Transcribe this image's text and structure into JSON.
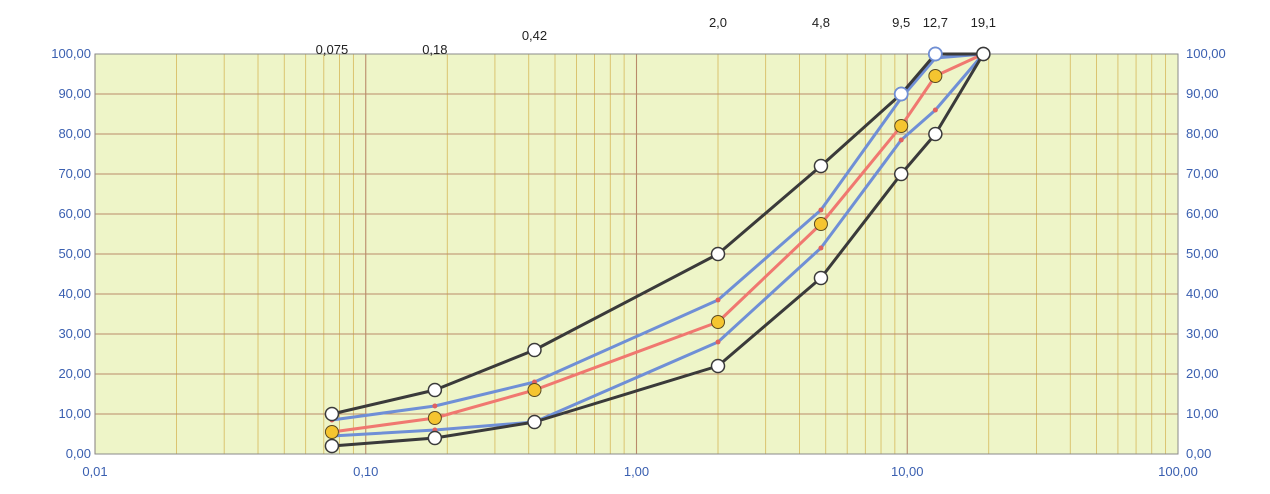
{
  "colors": {
    "plot_bg": "#eef5c8",
    "grid_major": "#b98a6a",
    "grid_minor": "#d6b85a",
    "tick_text": "#3a5fb0",
    "envelope_line": "#3a3a3a",
    "inner_line": "#6f8fd6",
    "median_line": "#f07870",
    "marker_yellow": "#f5c530"
  },
  "chart_data": {
    "type": "line",
    "x_scale": "log",
    "xlim": [
      0.01,
      100
    ],
    "ylim": [
      0,
      100
    ],
    "grid": true,
    "x_tick_labels": [
      {
        "v": 0.01,
        "label": "0,01"
      },
      {
        "v": 0.1,
        "label": "0,10"
      },
      {
        "v": 1,
        "label": "1,00"
      },
      {
        "v": 10,
        "label": "10,00"
      },
      {
        "v": 100,
        "label": "100,00"
      }
    ],
    "y_tick_labels": [
      {
        "v": 0,
        "label": "0,00"
      },
      {
        "v": 10,
        "label": "10,00"
      },
      {
        "v": 20,
        "label": "20,00"
      },
      {
        "v": 30,
        "label": "30,00"
      },
      {
        "v": 40,
        "label": "40,00"
      },
      {
        "v": 50,
        "label": "50,00"
      },
      {
        "v": 60,
        "label": "60,00"
      },
      {
        "v": 70,
        "label": "70,00"
      },
      {
        "v": 80,
        "label": "80,00"
      },
      {
        "v": 90,
        "label": "90,00"
      },
      {
        "v": 100,
        "label": "100,00"
      }
    ],
    "sieve_labels": [
      {
        "v": 0.075,
        "label": "0,075",
        "row": 2
      },
      {
        "v": 0.18,
        "label": "0,18",
        "row": 2
      },
      {
        "v": 0.42,
        "label": "0,42",
        "row": 1
      },
      {
        "v": 2.0,
        "label": "2,0",
        "row": 0
      },
      {
        "v": 4.8,
        "label": "4,8",
        "row": 0
      },
      {
        "v": 9.5,
        "label": "9,5",
        "row": 0
      },
      {
        "v": 12.7,
        "label": "12,7",
        "row": 0
      },
      {
        "v": 19.1,
        "label": "19,1",
        "row": 0
      }
    ],
    "series": [
      {
        "role": "upper-envelope",
        "color": "#3a3a3a",
        "marker": "circle-white",
        "x": [
          0.075,
          0.18,
          0.42,
          2.0,
          4.8,
          9.5,
          12.7,
          19.1
        ],
        "y": [
          10,
          16,
          26,
          50,
          72,
          90,
          100,
          100
        ]
      },
      {
        "role": "lower-envelope",
        "color": "#3a3a3a",
        "marker": "circle-white",
        "x": [
          0.075,
          0.18,
          0.42,
          2.0,
          4.8,
          9.5,
          12.7,
          19.1
        ],
        "y": [
          2,
          4,
          8,
          22,
          44,
          70,
          80,
          100
        ]
      },
      {
        "role": "upper-band",
        "color": "#6f8fd6",
        "marker": "dot",
        "x": [
          0.075,
          0.18,
          0.42,
          2.0,
          4.8,
          9.5,
          12.7,
          19.1
        ],
        "y": [
          8.5,
          12,
          18,
          38.5,
          61,
          89,
          99,
          100
        ]
      },
      {
        "role": "lower-band",
        "color": "#6f8fd6",
        "marker": "dot",
        "x": [
          0.075,
          0.18,
          0.42,
          2.0,
          4.8,
          9.5,
          12.7,
          19.1
        ],
        "y": [
          4.5,
          6,
          8,
          28,
          51.5,
          78.5,
          86,
          100
        ]
      },
      {
        "role": "median",
        "color": "#f07870",
        "marker": "circle-yellow",
        "x": [
          0.075,
          0.18,
          0.42,
          2.0,
          4.8,
          9.5,
          12.7,
          19.1
        ],
        "y": [
          5.5,
          9,
          16,
          33,
          57.5,
          82,
          94.5,
          100
        ]
      }
    ]
  }
}
